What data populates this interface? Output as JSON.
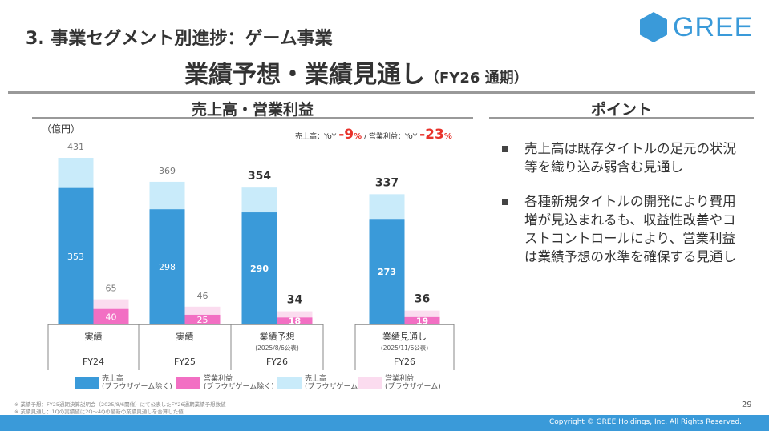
{
  "header": {
    "section_title": "3. 事業セグメント別進捗：ゲーム事業",
    "main_title": "業績予想・業績見通し",
    "main_title_suffix": "（FY26 通期）",
    "logo_text": "GREE"
  },
  "chart_panel": {
    "title": "売上高・営業利益",
    "unit": "（億円）",
    "yoy": {
      "sales_label": "売上高：YoY",
      "sales_value": "-9",
      "sales_unit": "%",
      "sep": "/",
      "op_label": "営業利益：YoY",
      "op_value": "-23",
      "op_unit": "%"
    }
  },
  "chart_data": {
    "type": "bar",
    "stacked": true,
    "ylabel": "億円",
    "ylim": [
      0,
      450
    ],
    "categories": [
      {
        "label": "実績",
        "note": "",
        "fy": "FY24"
      },
      {
        "label": "実績",
        "note": "",
        "fy": "FY25"
      },
      {
        "label": "業績予想",
        "note": "(2025/8/6公表)",
        "fy": "FY26"
      },
      {
        "label": "業績見通し",
        "note": "(2025/11/6公表)",
        "fy": "FY26"
      }
    ],
    "sales_total": [
      431,
      369,
      354,
      337
    ],
    "sales_ex_browser": [
      353,
      298,
      290,
      273
    ],
    "op_total": [
      65,
      46,
      34,
      36
    ],
    "op_ex_browser": [
      40,
      25,
      18,
      19
    ],
    "legend": [
      {
        "label": "売上高",
        "sub": "(ブラウザゲーム除く)",
        "color": "#3a9ad9"
      },
      {
        "label": "営業利益",
        "sub": "(ブラウザゲーム除く)",
        "color": "#f26fc3"
      },
      {
        "label": "売上高",
        "sub": "(ブラウザゲーム)",
        "color": "#c9ebfa"
      },
      {
        "label": "営業利益",
        "sub": "(ブラウザゲーム)",
        "color": "#fbdcef"
      }
    ]
  },
  "points": {
    "title": "ポイント",
    "items": [
      "売上高は既存タイトルの足元の状況等を織り込み弱含む見通し",
      "各種新規タイトルの開発により費用増が見込まれるも、収益性改善やコストコントロールにより、営業利益は業績予想の水準を確保する見通し"
    ]
  },
  "footnotes": [
    "※ 業績予想：FY25通期決算説明会（2025/8/6開催）にて公表したFY26通期業績予想数値",
    "※ 業績見通し：1Qの実績値に2Q～4Qの最新の業績見通しを合算した値"
  ],
  "page_number": "29",
  "copyright": "Copyright © GREE Holdings, Inc. All Rights Reserved."
}
